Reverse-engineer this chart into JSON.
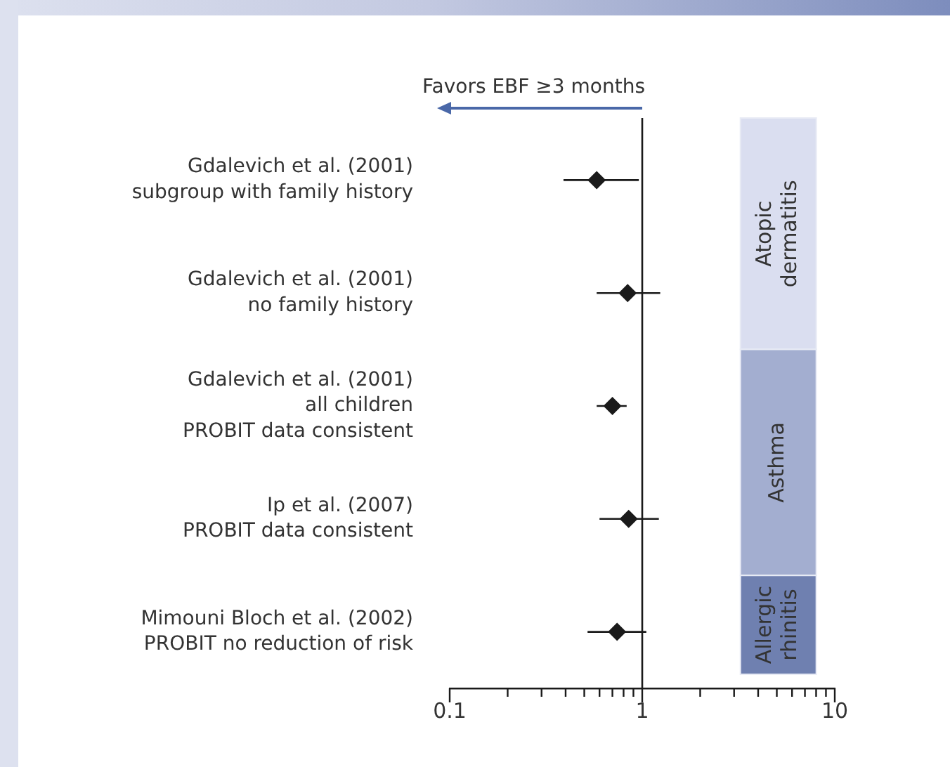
{
  "chart_data": {
    "type": "scatter",
    "orientation": "horizontal",
    "log": "x",
    "marker": "diamond",
    "legend": false,
    "grid": false,
    "categories": [
      "Gdalevich et al. (2001)\nsubgroup with family history",
      "Gdalevich et al. (2001)\nno family history",
      "Gdalevich et al. (2001)\nall children\nPROBIT data consistent",
      "Ip et al. (2007)\nPROBIT data consistent",
      "Mimouni Bloch et al. (2002)\nPROBIT no reduction of risk"
    ],
    "values": [
      0.58,
      0.84,
      0.7,
      0.85,
      0.74
    ],
    "errors": [
      [
        0.39,
        0.96
      ],
      [
        0.58,
        1.24
      ],
      [
        0.58,
        0.83
      ],
      [
        0.6,
        1.22
      ],
      [
        0.52,
        1.05
      ]
    ],
    "color": "#1a1a1a",
    "xlim": [
      0.1,
      10
    ],
    "xticks": [
      0.1,
      {
        "value": 0.2,
        "label": null
      },
      {
        "value": 0.3,
        "label": null
      },
      {
        "value": 0.4,
        "label": null
      },
      {
        "value": 0.5,
        "label": null
      },
      {
        "value": 0.6,
        "label": null
      },
      {
        "value": 0.7,
        "label": null
      },
      {
        "value": 0.8,
        "label": null
      },
      {
        "value": 0.9,
        "label": null
      },
      1,
      {
        "value": 2,
        "label": null
      },
      {
        "value": 3,
        "label": null
      },
      {
        "value": 4,
        "label": null
      },
      {
        "value": 5,
        "label": null
      },
      {
        "value": 6,
        "label": null
      },
      {
        "value": 7,
        "label": null
      },
      {
        "value": 8,
        "label": null
      },
      {
        "value": 9,
        "label": null
      },
      10
    ],
    "ref_lines": [
      {
        "axis": "x",
        "value": 1,
        "color": "#1a1a1a"
      }
    ],
    "bands": [
      {
        "axis": "y",
        "from": "Gdalevich et al. (2001)\nsubgroup with family history",
        "to": "Gdalevich et al. (2001)\nno family history",
        "label": "Atopic\ndermatitis",
        "color": "#dadef0"
      },
      {
        "axis": "y",
        "from": "Gdalevich et al. (2001)\nall children\nPROBIT data consistent",
        "to": "Ip et al. (2007)\nPROBIT data consistent",
        "label": "Asthma",
        "color": "#a3aed0"
      },
      {
        "axis": "y",
        "from": "Mimouni Bloch et al. (2002)\nPROBIT no reduction of risk",
        "to": "Mimouni Bloch et al. (2002)\nPROBIT no reduction of risk",
        "label": "Allergic\nrhinitis",
        "color": "#6f80b0"
      }
    ],
    "annotations": [
      "Favors EBF ≥3 months"
    ]
  }
}
